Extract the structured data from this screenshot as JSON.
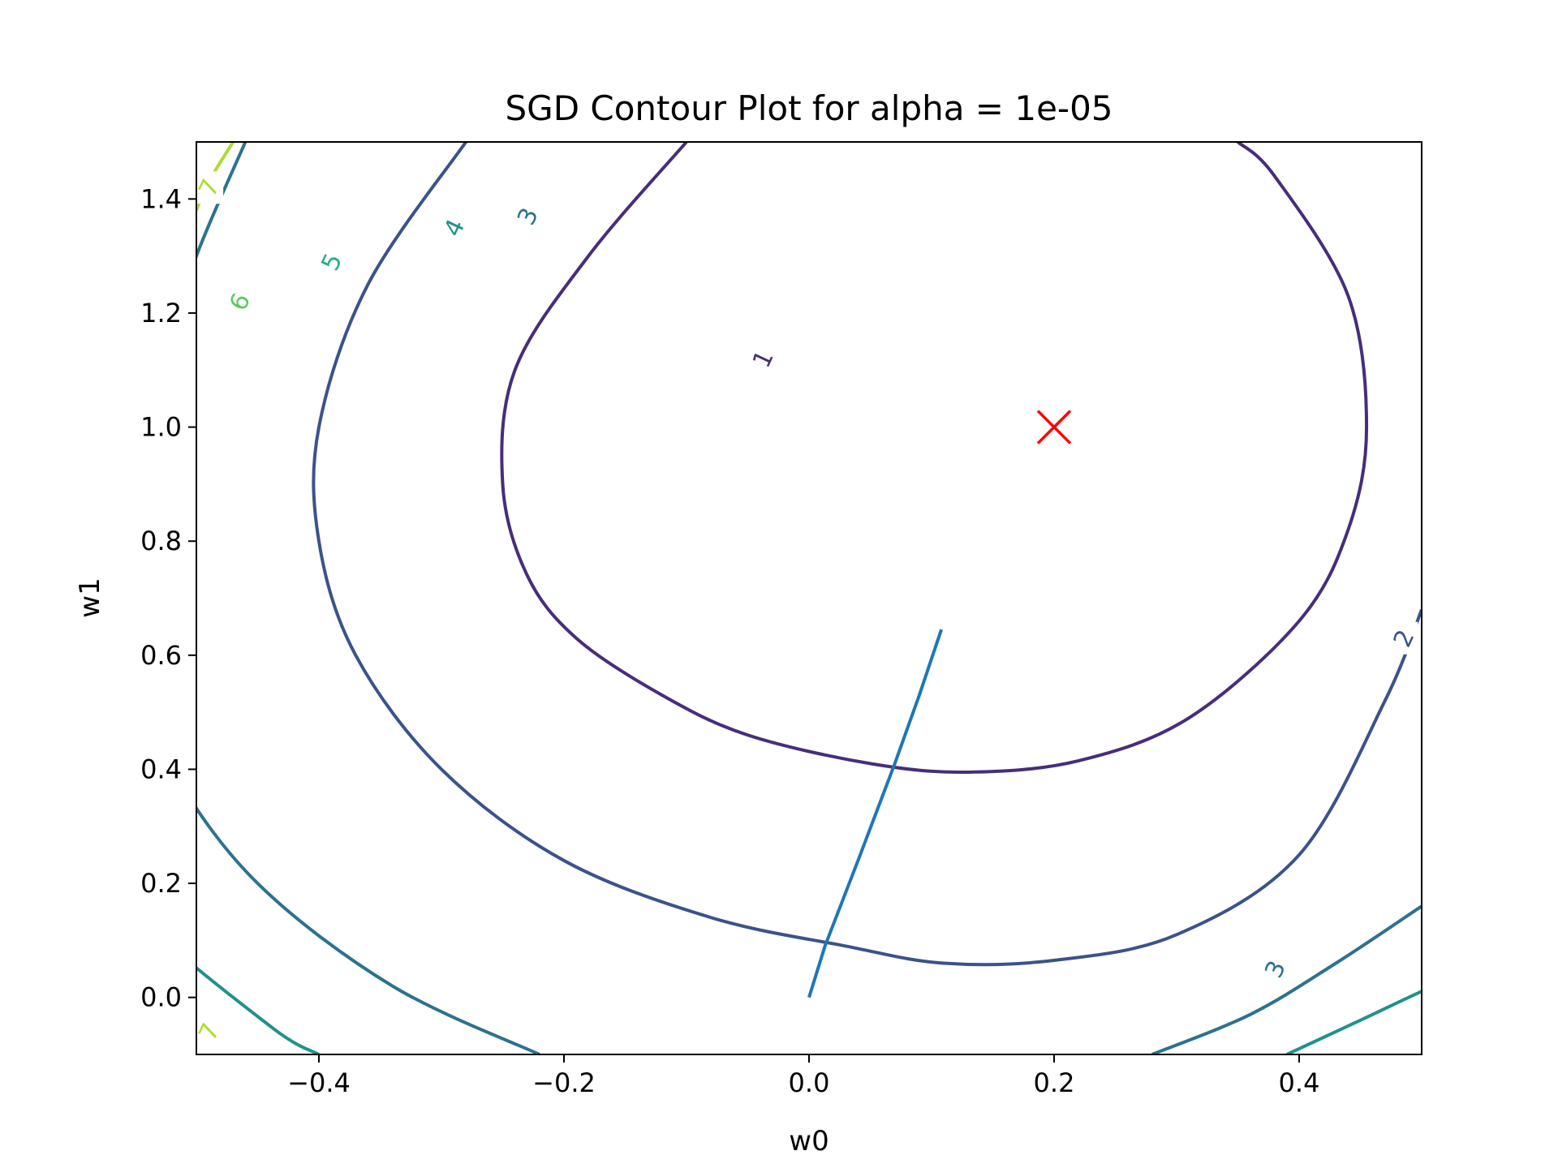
{
  "chart_data": {
    "type": "contour",
    "title": "SGD Contour Plot for alpha = 1e-05",
    "xlabel": "w0",
    "ylabel": "w1",
    "xlim": [
      -0.5,
      0.5
    ],
    "ylim": [
      -0.1,
      1.5
    ],
    "x_ticks": [
      -0.4,
      -0.2,
      0.0,
      0.2,
      0.4
    ],
    "x_tick_labels": [
      "−0.4",
      "−0.2",
      "0.0",
      "0.2",
      "0.4"
    ],
    "y_ticks": [
      0.0,
      0.2,
      0.4,
      0.6,
      0.8,
      1.0,
      1.2,
      1.4
    ],
    "y_tick_labels": [
      "0.0",
      "0.2",
      "0.4",
      "0.6",
      "0.8",
      "1.0",
      "1.2",
      "1.4"
    ],
    "grid": false,
    "colormap": "viridis",
    "contours": [
      {
        "level": 1,
        "color": "#472d7b",
        "label_points": [
          [
            -0.038,
            1.12
          ]
        ],
        "points": [
          [
            -0.1,
            1.5
          ],
          [
            -0.18,
            1.3
          ],
          [
            -0.24,
            1.1
          ],
          [
            -0.25,
            0.9
          ],
          [
            -0.23,
            0.74
          ],
          [
            -0.19,
            0.63
          ],
          [
            -0.12,
            0.53
          ],
          [
            -0.05,
            0.46
          ],
          [
            0.05,
            0.41
          ],
          [
            0.13,
            0.395
          ],
          [
            0.22,
            0.415
          ],
          [
            0.31,
            0.49
          ],
          [
            0.4,
            0.66
          ],
          [
            0.44,
            0.82
          ],
          [
            0.455,
            1.0
          ],
          [
            0.44,
            1.23
          ],
          [
            0.38,
            1.44
          ],
          [
            0.35,
            1.5
          ]
        ]
      },
      {
        "level": 2,
        "color": "#3b528b",
        "label_points": [
          [
            0.485,
            0.63
          ]
        ],
        "points": [
          [
            -0.28,
            1.5
          ],
          [
            -0.36,
            1.25
          ],
          [
            -0.4,
            1.0
          ],
          [
            -0.4,
            0.8
          ],
          [
            -0.37,
            0.6
          ],
          [
            -0.3,
            0.4
          ],
          [
            -0.2,
            0.24
          ],
          [
            -0.08,
            0.14
          ],
          [
            0.03,
            0.09
          ],
          [
            0.11,
            0.06
          ],
          [
            0.2,
            0.065
          ],
          [
            0.3,
            0.11
          ],
          [
            0.4,
            0.25
          ],
          [
            0.47,
            0.52
          ],
          [
            0.5,
            0.68
          ]
        ]
      },
      {
        "level": 3,
        "color": "#2c728e",
        "label_points": [
          [
            -0.23,
            1.37
          ],
          [
            0.38,
            0.05
          ]
        ],
        "points": [
          [
            -0.46,
            1.5
          ],
          [
            -0.5,
            1.3
          ],
          [
            -0.53,
            1.1
          ],
          [
            -0.57,
            0.8
          ],
          [
            -0.56,
            0.6
          ],
          [
            -0.52,
            0.4
          ],
          [
            -0.45,
            0.2
          ],
          [
            -0.34,
            0.02
          ],
          [
            -0.22,
            -0.1
          ]
        ],
        "points2": [
          [
            0.28,
            -0.1
          ],
          [
            0.36,
            -0.03
          ],
          [
            0.43,
            0.06
          ],
          [
            0.5,
            0.16
          ]
        ]
      },
      {
        "level": 4,
        "color": "#21918c",
        "label_points": [
          [
            -0.29,
            1.35
          ],
          [
            0.52,
            0.0
          ]
        ],
        "points": [
          [
            -0.57,
            1.5
          ],
          [
            -0.63,
            1.3
          ],
          [
            -0.67,
            1.1
          ],
          [
            -0.71,
            0.8
          ],
          [
            -0.69,
            0.6
          ],
          [
            -0.64,
            0.4
          ],
          [
            -0.55,
            0.15
          ],
          [
            -0.44,
            -0.05
          ],
          [
            -0.4,
            -0.1
          ]
        ],
        "points2": [
          [
            0.39,
            -0.1
          ],
          [
            0.45,
            -0.04
          ],
          [
            0.52,
            0.03
          ],
          [
            0.6,
            0.1
          ]
        ]
      },
      {
        "level": 5,
        "color": "#27ad81",
        "label_points": [
          [
            -0.39,
            1.29
          ]
        ],
        "points": [
          [
            -0.7,
            1.5
          ],
          [
            -0.76,
            1.3
          ],
          [
            -0.8,
            1.1
          ],
          [
            -0.82,
            0.8
          ],
          [
            -0.81,
            0.6
          ],
          [
            -0.77,
            0.4
          ],
          [
            -0.69,
            0.15
          ],
          [
            -0.59,
            -0.05
          ],
          [
            -0.55,
            -0.1
          ]
        ]
      },
      {
        "level": 6,
        "color": "#5ec962",
        "label_points": [
          [
            -0.465,
            1.22
          ]
        ],
        "points": [
          [
            -0.84,
            1.5
          ],
          [
            -0.92,
            1.3
          ],
          [
            -0.96,
            1.1
          ],
          [
            -0.98,
            0.8
          ],
          [
            -0.97,
            0.6
          ],
          [
            -0.93,
            0.4
          ],
          [
            -0.85,
            0.15
          ],
          [
            -0.75,
            -0.05
          ],
          [
            -0.7,
            -0.1
          ]
        ]
      },
      {
        "level": 7,
        "color": "#addc30",
        "label_points": [
          [
            -0.49,
            1.42
          ],
          [
            -0.49,
            -0.06
          ]
        ],
        "points": [
          [
            -0.47,
            1.5
          ],
          [
            -0.49,
            1.43
          ],
          [
            -0.5,
            1.38
          ]
        ],
        "points2": [
          [
            -0.5,
            -0.05
          ],
          [
            -0.49,
            -0.06
          ],
          [
            -0.48,
            -0.07
          ]
        ]
      }
    ],
    "sgd_path": {
      "color": "#1f77b4",
      "points": [
        [
          0.0,
          0.0
        ],
        [
          0.013,
          0.09
        ],
        [
          0.04,
          0.24
        ],
        [
          0.07,
          0.41
        ],
        [
          0.09,
          0.53
        ],
        [
          0.108,
          0.645
        ]
      ]
    },
    "target_marker": {
      "x": 0.2,
      "y": 1.0,
      "symbol": "x",
      "color": "#ff0000"
    }
  }
}
